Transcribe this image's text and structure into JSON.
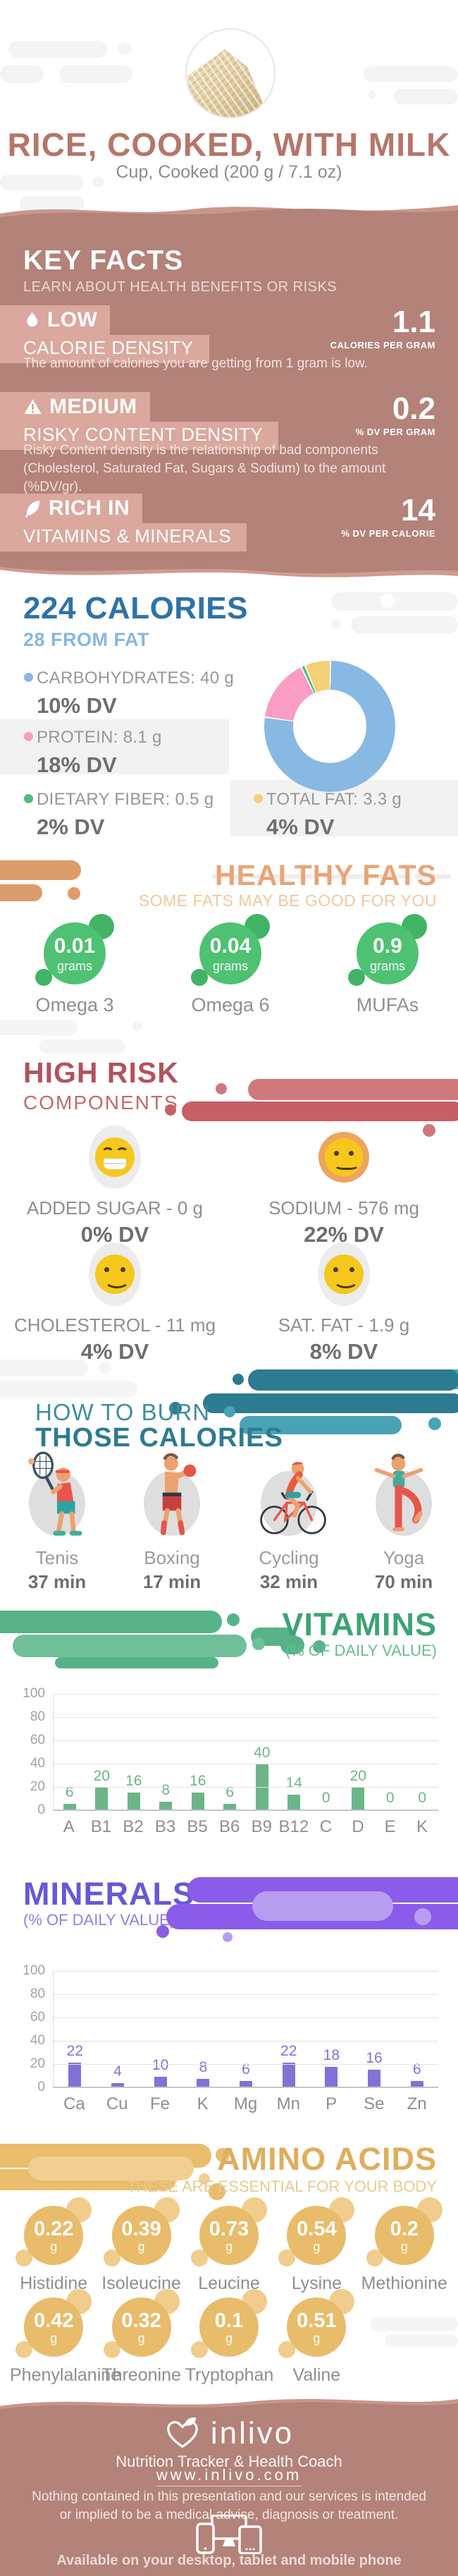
{
  "header": {
    "title": "RICE, COOKED, WITH MILK",
    "subtitle": "Cup, Cooked (200 g / 7.1 oz)"
  },
  "key_facts": {
    "title": "KEY FACTS",
    "subtitle": "LEARN ABOUT HEALTH BENEFITS OR RISKS",
    "facts": [
      {
        "icon": "flame-icon",
        "level": "LOW",
        "name": "CALORIE DENSITY",
        "value": "1.1",
        "unit": "CALORIES PER GRAM",
        "description": "The amount of calories you are getting from 1 gram is low."
      },
      {
        "icon": "warning-icon",
        "level": "MEDIUM",
        "name": "RISKY CONTENT DENSITY",
        "value": "0.2",
        "unit": "% DV PER GRAM",
        "description": "Risky Content density is the relationship of bad components (Cholesterol, Saturated Fat, Sugars & Sodium) to the amount (%DV/gr)."
      },
      {
        "icon": "leaf-icon",
        "level": "RICH IN",
        "name": "VITAMINS & MINERALS",
        "value": "14",
        "unit": "% DV PER CALORIE",
        "description": ""
      }
    ]
  },
  "calories": {
    "title": "224 CALORIES",
    "subtitle": "28 FROM FAT",
    "legend": [
      {
        "label": "CARBOHYDRATES: 40 g",
        "dv": "10% DV",
        "color": "#88b9e3",
        "highlight": false
      },
      {
        "label": "PROTEIN: 8.1 g",
        "dv": "18% DV",
        "color": "#f99dc4",
        "highlight": true
      },
      {
        "label": "DIETARY FIBER: 0.5 g",
        "dv": "2% DV",
        "color": "#51bd7c",
        "highlight": false
      },
      {
        "label": "TOTAL FAT: 3.3 g",
        "dv": "4% DV",
        "color": "#f6cf79",
        "highlight": true
      }
    ]
  },
  "healthy_fats": {
    "title": "HEALTHY FATS",
    "subtitle": "SOME FATS MAY BE GOOD FOR YOU",
    "items": [
      {
        "value": "0.01",
        "unit": "grams",
        "label": "Omega 3"
      },
      {
        "value": "0.04",
        "unit": "grams",
        "label": "Omega 6"
      },
      {
        "value": "0.9",
        "unit": "grams",
        "label": "MUFAs"
      }
    ]
  },
  "high_risk": {
    "title": "HIGH RISK",
    "subtitle": "COMPONENTS",
    "items": [
      {
        "emoji": "grin-emoji",
        "label": "ADDED SUGAR - 0 g",
        "dv": "0% DV"
      },
      {
        "emoji": "smile-ring-emoji",
        "label": "SODIUM - 576 mg",
        "dv": "22% DV"
      },
      {
        "emoji": "smile-emoji",
        "label": "CHOLESTEROL - 11 mg",
        "dv": "4% DV"
      },
      {
        "emoji": "smile-emoji",
        "label": "SAT. FAT - 1.9 g",
        "dv": "8% DV"
      }
    ]
  },
  "burn": {
    "title_line1": "HOW TO BURN",
    "title_line2": "THOSE CALORIES",
    "activities": [
      {
        "icon": "tennis-icon",
        "label": "Tenis",
        "minutes": "37 min"
      },
      {
        "icon": "boxing-icon",
        "label": "Boxing",
        "minutes": "17 min"
      },
      {
        "icon": "cycling-icon",
        "label": "Cycling",
        "minutes": "32 min"
      },
      {
        "icon": "yoga-icon",
        "label": "Yoga",
        "minutes": "70 min"
      }
    ]
  },
  "vitamins": {
    "title": "VITAMINS",
    "subtitle": "(% OF DAILY VALUE)"
  },
  "minerals": {
    "title": "MINERALS",
    "subtitle": "(% OF DAILY VALUE)"
  },
  "amino_acids": {
    "title": "AMINO ACIDS",
    "subtitle": "THESE ARE ESSENTIAL FOR YOUR BODY",
    "items": [
      {
        "value": "0.22",
        "unit": "g",
        "label": "Histidine"
      },
      {
        "value": "0.39",
        "unit": "g",
        "label": "Isoleucine"
      },
      {
        "value": "0.73",
        "unit": "g",
        "label": "Leucine"
      },
      {
        "value": "0.54",
        "unit": "g",
        "label": "Lysine"
      },
      {
        "value": "0.2",
        "unit": "g",
        "label": "Methionine"
      },
      {
        "value": "0.42",
        "unit": "g",
        "label": "Phenylalanine"
      },
      {
        "value": "0.32",
        "unit": "g",
        "label": "Threonine"
      },
      {
        "value": "0.1",
        "unit": "g",
        "label": "Tryptophan"
      },
      {
        "value": "0.51",
        "unit": "g",
        "label": "Valine"
      }
    ]
  },
  "footer": {
    "brand": "inlivo",
    "tagline": "Nutrition Tracker & Health Coach",
    "website": "www.inlivo.com",
    "disclaimer": "Nothing contained in this presentation and our services is intended or implied to be a medical advice, diagnosis or treatment.",
    "availability": "Available on your desktop, tablet and mobile phone"
  },
  "colors": {
    "mauve": "#b38279",
    "mauve_light": "#c9968a",
    "badge_pink": "#daa89d",
    "title_rose": "#b5766a",
    "blue": "#2e72a6",
    "light_blue": "#85b7e2",
    "pink": "#f99dc4",
    "fiber_green": "#51bd7c",
    "fat_yellow": "#f6cf79",
    "orange": "#eba475",
    "blob_green": "#4fc173",
    "risk_red": "#b4525b",
    "teal_dark": "#2d7b90",
    "teal_light": "#49a3b5",
    "chart_green": "#6cb588",
    "chart_purple": "#8172d6",
    "purple_blob": "#8a5ce9",
    "gold": "#e9bd6b",
    "emoji_yellow": "#f6c71d",
    "emoji_orange_ring": "#eda55e"
  },
  "chart_data": [
    {
      "type": "pie",
      "title": "224 CALORIES",
      "subtitle": "28 FROM FAT",
      "labels": [
        "Carbohydrates",
        "Protein",
        "Dietary Fiber",
        "Total Fat"
      ],
      "values_g": [
        40,
        8.1,
        0.5,
        3.3
      ],
      "dv_percent": [
        10,
        18,
        2,
        4
      ],
      "colors": [
        "#88b9e3",
        "#f99dc4",
        "#51bd7c",
        "#f6cf79"
      ],
      "donut": true
    },
    {
      "type": "bar",
      "title": "VITAMINS",
      "subtitle": "(% OF DAILY VALUE)",
      "categories": [
        "A",
        "B1",
        "B2",
        "B3",
        "B5",
        "B6",
        "B9",
        "B12",
        "C",
        "D",
        "E",
        "K"
      ],
      "values": [
        6,
        20,
        16,
        8,
        16,
        6,
        40,
        14,
        0,
        20,
        0,
        0
      ],
      "xlabel": "",
      "ylabel": "% of Daily Value",
      "ylim": [
        0,
        100
      ],
      "yticks": [
        0,
        20,
        40,
        60,
        80,
        100
      ],
      "bar_color": "#6cb588",
      "grid": true,
      "legend_position": "none"
    },
    {
      "type": "bar",
      "title": "MINERALS",
      "subtitle": "(% OF DAILY VALUE)",
      "categories": [
        "Ca",
        "Cu",
        "Fe",
        "K",
        "Mg",
        "Mn",
        "P",
        "Se",
        "Zn"
      ],
      "values": [
        22,
        4,
        10,
        8,
        6,
        22,
        18,
        16,
        6
      ],
      "xlabel": "",
      "ylabel": "% of Daily Value",
      "ylim": [
        0,
        100
      ],
      "yticks": [
        0,
        20,
        40,
        60,
        80,
        100
      ],
      "bar_color": "#8172d6",
      "grid": true,
      "legend_position": "none"
    }
  ]
}
